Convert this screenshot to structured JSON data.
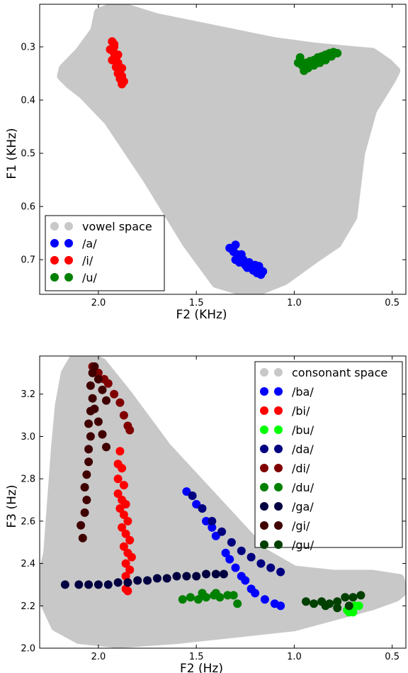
{
  "chart_data": [
    {
      "type": "scatter",
      "xlabel": "F2 (KHz)",
      "ylabel": "F1 (KHz)",
      "xlim": [
        2.3,
        0.43
      ],
      "ylim": [
        0.765,
        0.22
      ],
      "x_inverted": true,
      "y_inverted": true,
      "xticks": [
        "2.0",
        "1.5",
        "1.0",
        "0.5"
      ],
      "xtick_values": [
        2.0,
        1.5,
        1.0,
        0.5
      ],
      "yticks": [
        "0.3",
        "0.4",
        "0.5",
        "0.6",
        "0.7"
      ],
      "ytick_values": [
        0.3,
        0.4,
        0.5,
        0.6,
        0.7
      ],
      "legend_position": "lower-left",
      "series": [
        {
          "name": "vowel space",
          "color": "#c8c8c8",
          "kind": "region",
          "outline": [
            [
              2.0,
              0.235
            ],
            [
              1.93,
              0.225
            ],
            [
              1.85,
              0.228
            ],
            [
              1.7,
              0.245
            ],
            [
              1.5,
              0.26
            ],
            [
              1.3,
              0.275
            ],
            [
              1.1,
              0.29
            ],
            [
              0.9,
              0.3
            ],
            [
              0.75,
              0.305
            ],
            [
              0.6,
              0.31
            ],
            [
              0.52,
              0.33
            ],
            [
              0.48,
              0.345
            ],
            [
              0.5,
              0.36
            ],
            [
              0.6,
              0.42
            ],
            [
              0.66,
              0.5
            ],
            [
              0.7,
              0.62
            ],
            [
              0.78,
              0.67
            ],
            [
              0.9,
              0.7
            ],
            [
              1.05,
              0.74
            ],
            [
              1.22,
              0.765
            ],
            [
              1.4,
              0.745
            ],
            [
              1.55,
              0.67
            ],
            [
              1.75,
              0.55
            ],
            [
              1.95,
              0.44
            ],
            [
              2.08,
              0.39
            ],
            [
              2.15,
              0.37
            ],
            [
              2.19,
              0.355
            ],
            [
              2.18,
              0.34
            ],
            [
              2.1,
              0.31
            ],
            [
              2.02,
              0.27
            ]
          ]
        },
        {
          "name": "/a/",
          "color": "#0000ff",
          "points": [
            [
              1.33,
              0.678
            ],
            [
              1.31,
              0.685
            ],
            [
              1.29,
              0.69
            ],
            [
              1.3,
              0.7
            ],
            [
              1.28,
              0.705
            ],
            [
              1.26,
              0.7
            ],
            [
              1.25,
              0.71
            ],
            [
              1.24,
              0.715
            ],
            [
              1.22,
              0.712
            ],
            [
              1.21,
              0.72
            ],
            [
              1.2,
              0.718
            ],
            [
              1.19,
              0.725
            ],
            [
              1.18,
              0.72
            ],
            [
              1.17,
              0.728
            ],
            [
              1.16,
              0.722
            ],
            [
              1.27,
              0.69
            ],
            [
              1.23,
              0.705
            ],
            [
              1.2,
              0.71
            ],
            [
              1.3,
              0.672
            ],
            [
              1.18,
              0.712
            ]
          ]
        },
        {
          "name": "/i/",
          "color": "#ff0000",
          "points": [
            [
              1.93,
              0.29
            ],
            [
              1.92,
              0.3
            ],
            [
              1.94,
              0.305
            ],
            [
              1.92,
              0.312
            ],
            [
              1.91,
              0.32
            ],
            [
              1.93,
              0.325
            ],
            [
              1.9,
              0.33
            ],
            [
              1.91,
              0.338
            ],
            [
              1.89,
              0.345
            ],
            [
              1.9,
              0.35
            ],
            [
              1.88,
              0.355
            ],
            [
              1.89,
              0.36
            ],
            [
              1.87,
              0.365
            ],
            [
              1.88,
              0.37
            ],
            [
              1.92,
              0.295
            ],
            [
              1.9,
              0.315
            ],
            [
              1.88,
              0.34
            ]
          ]
        },
        {
          "name": "/u/",
          "color": "#008000",
          "points": [
            [
              0.98,
              0.33
            ],
            [
              0.96,
              0.335
            ],
            [
              0.94,
              0.33
            ],
            [
              0.92,
              0.327
            ],
            [
              0.9,
              0.325
            ],
            [
              0.88,
              0.32
            ],
            [
              0.86,
              0.318
            ],
            [
              0.84,
              0.315
            ],
            [
              0.82,
              0.312
            ],
            [
              0.8,
              0.31
            ],
            [
              0.78,
              0.312
            ],
            [
              0.95,
              0.345
            ],
            [
              0.93,
              0.34
            ],
            [
              0.9,
              0.335
            ],
            [
              0.87,
              0.33
            ],
            [
              0.84,
              0.325
            ],
            [
              0.97,
              0.32
            ],
            [
              0.81,
              0.318
            ]
          ]
        }
      ]
    },
    {
      "type": "scatter",
      "xlabel": "F2 (Hz)",
      "ylabel": "F3 (Hz)",
      "xlim": [
        2.3,
        0.43
      ],
      "ylim": [
        2.0,
        3.38
      ],
      "x_inverted": true,
      "xticks": [
        "2.0",
        "1.5",
        "1.0",
        "0.5"
      ],
      "xtick_values": [
        2.0,
        1.5,
        1.0,
        0.5
      ],
      "yticks": [
        "2.0",
        "2.2",
        "2.4",
        "2.6",
        "2.8",
        "3.0",
        "3.2"
      ],
      "ytick_values": [
        2.0,
        2.2,
        2.4,
        2.6,
        2.8,
        3.0,
        3.2
      ],
      "legend_position": "top-right",
      "series": [
        {
          "name": "consonant space",
          "color": "#c8c8c8",
          "kind": "region",
          "outline": [
            [
              2.12,
              3.38
            ],
            [
              2.05,
              3.38
            ],
            [
              1.98,
              3.35
            ],
            [
              1.85,
              3.2
            ],
            [
              1.65,
              2.95
            ],
            [
              1.45,
              2.75
            ],
            [
              1.3,
              2.6
            ],
            [
              1.15,
              2.45
            ],
            [
              1.0,
              2.37
            ],
            [
              0.8,
              2.35
            ],
            [
              0.6,
              2.35
            ],
            [
              0.46,
              2.33
            ],
            [
              0.44,
              2.27
            ],
            [
              0.48,
              2.24
            ],
            [
              0.6,
              2.2
            ],
            [
              0.8,
              2.15
            ],
            [
              1.0,
              2.1
            ],
            [
              1.3,
              2.07
            ],
            [
              1.6,
              2.04
            ],
            [
              1.9,
              2.02
            ],
            [
              2.1,
              2.04
            ],
            [
              2.22,
              2.1
            ],
            [
              2.28,
              2.22
            ],
            [
              2.3,
              2.3
            ],
            [
              2.26,
              2.45
            ],
            [
              2.24,
              2.7
            ],
            [
              2.22,
              2.95
            ],
            [
              2.2,
              3.15
            ],
            [
              2.17,
              3.3
            ]
          ]
        },
        {
          "name": "/ba/",
          "color": "#0000ff",
          "points": [
            [
              1.55,
              2.74
            ],
            [
              1.5,
              2.68
            ],
            [
              1.45,
              2.6
            ],
            [
              1.4,
              2.53
            ],
            [
              1.35,
              2.45
            ],
            [
              1.3,
              2.38
            ],
            [
              1.25,
              2.32
            ],
            [
              1.2,
              2.26
            ],
            [
              1.15,
              2.23
            ],
            [
              1.1,
              2.21
            ],
            [
              1.07,
              2.2
            ],
            [
              1.42,
              2.57
            ],
            [
              1.33,
              2.42
            ],
            [
              1.27,
              2.34
            ],
            [
              1.22,
              2.28
            ]
          ]
        },
        {
          "name": "/bi/",
          "color": "#ff0000",
          "points": [
            [
              1.89,
              2.93
            ],
            [
              1.9,
              2.87
            ],
            [
              1.88,
              2.85
            ],
            [
              1.9,
              2.8
            ],
            [
              1.87,
              2.77
            ],
            [
              1.9,
              2.73
            ],
            [
              1.88,
              2.7
            ],
            [
              1.86,
              2.68
            ],
            [
              1.89,
              2.66
            ],
            [
              1.87,
              2.63
            ],
            [
              1.85,
              2.6
            ],
            [
              1.88,
              2.57
            ],
            [
              1.86,
              2.54
            ],
            [
              1.84,
              2.51
            ],
            [
              1.87,
              2.48
            ],
            [
              1.85,
              2.45
            ],
            [
              1.83,
              2.43
            ],
            [
              1.86,
              2.4
            ],
            [
              1.84,
              2.37
            ],
            [
              1.86,
              2.34
            ],
            [
              1.85,
              2.31
            ],
            [
              1.86,
              2.28
            ],
            [
              1.85,
              2.27
            ]
          ]
        },
        {
          "name": "/bu/",
          "color": "#00ff00",
          "points": [
            [
              0.73,
              2.18
            ],
            [
              0.71,
              2.19
            ],
            [
              0.69,
              2.2
            ],
            [
              0.67,
              2.2
            ],
            [
              0.72,
              2.17
            ],
            [
              0.7,
              2.17
            ]
          ]
        },
        {
          "name": "/da/",
          "color": "#000080",
          "points": [
            [
              1.52,
              2.72
            ],
            [
              1.47,
              2.66
            ],
            [
              1.42,
              2.6
            ],
            [
              1.37,
              2.55
            ],
            [
              1.32,
              2.5
            ],
            [
              1.27,
              2.46
            ],
            [
              1.22,
              2.43
            ],
            [
              1.17,
              2.4
            ],
            [
              1.12,
              2.38
            ],
            [
              1.07,
              2.36
            ]
          ]
        },
        {
          "name": "/di/",
          "color": "#800000",
          "points": [
            [
              2.03,
              3.33
            ],
            [
              2.0,
              3.3
            ],
            [
              1.97,
              3.27
            ],
            [
              1.95,
              3.25
            ],
            [
              1.92,
              3.2
            ],
            [
              1.89,
              3.16
            ],
            [
              1.87,
              3.1
            ],
            [
              1.85,
              3.05
            ],
            [
              1.84,
              3.03
            ]
          ]
        },
        {
          "name": "/du/",
          "color": "#008000",
          "points": [
            [
              1.57,
              2.23
            ],
            [
              1.53,
              2.24
            ],
            [
              1.49,
              2.23
            ],
            [
              1.45,
              2.24
            ],
            [
              1.41,
              2.25
            ],
            [
              1.38,
              2.24
            ],
            [
              1.34,
              2.25
            ],
            [
              1.31,
              2.25
            ],
            [
              1.29,
              2.21
            ],
            [
              1.47,
              2.26
            ],
            [
              1.4,
              2.26
            ]
          ]
        },
        {
          "name": "/ga/",
          "color": "#000040",
          "points": [
            [
              2.17,
              2.3
            ],
            [
              2.1,
              2.3
            ],
            [
              2.05,
              2.3
            ],
            [
              2.0,
              2.3
            ],
            [
              1.95,
              2.3
            ],
            [
              1.9,
              2.31
            ],
            [
              1.85,
              2.31
            ],
            [
              1.8,
              2.32
            ],
            [
              1.75,
              2.32
            ],
            [
              1.7,
              2.33
            ],
            [
              1.65,
              2.33
            ],
            [
              1.6,
              2.34
            ],
            [
              1.55,
              2.34
            ],
            [
              1.5,
              2.34
            ],
            [
              1.45,
              2.35
            ],
            [
              1.4,
              2.35
            ],
            [
              1.36,
              2.35
            ]
          ]
        },
        {
          "name": "/gi/",
          "color": "#400000",
          "points": [
            [
              2.08,
              2.52
            ],
            [
              2.09,
              2.58
            ],
            [
              2.07,
              2.64
            ],
            [
              2.06,
              2.7
            ],
            [
              2.07,
              2.76
            ],
            [
              2.06,
              2.82
            ],
            [
              2.05,
              2.88
            ],
            [
              2.05,
              2.94
            ],
            [
              2.04,
              3.0
            ],
            [
              2.05,
              3.06
            ],
            [
              2.04,
              3.12
            ],
            [
              2.03,
              3.18
            ],
            [
              2.04,
              3.24
            ],
            [
              2.03,
              3.3
            ],
            [
              2.02,
              3.33
            ],
            [
              2.0,
              3.27
            ],
            [
              1.98,
              3.22
            ],
            [
              1.96,
              3.17
            ],
            [
              2.02,
              3.13
            ],
            [
              2.0,
              3.07
            ],
            [
              1.98,
              3.01
            ],
            [
              1.96,
              2.95
            ]
          ]
        },
        {
          "name": "/gu/",
          "color": "#004000",
          "points": [
            [
              0.94,
              2.22
            ],
            [
              0.9,
              2.21
            ],
            [
              0.86,
              2.22
            ],
            [
              0.82,
              2.21
            ],
            [
              0.78,
              2.22
            ],
            [
              0.74,
              2.24
            ],
            [
              0.7,
              2.24
            ],
            [
              0.66,
              2.25
            ],
            [
              0.84,
              2.2
            ],
            [
              0.78,
              2.19
            ],
            [
              0.72,
              2.2
            ]
          ]
        }
      ]
    }
  ]
}
